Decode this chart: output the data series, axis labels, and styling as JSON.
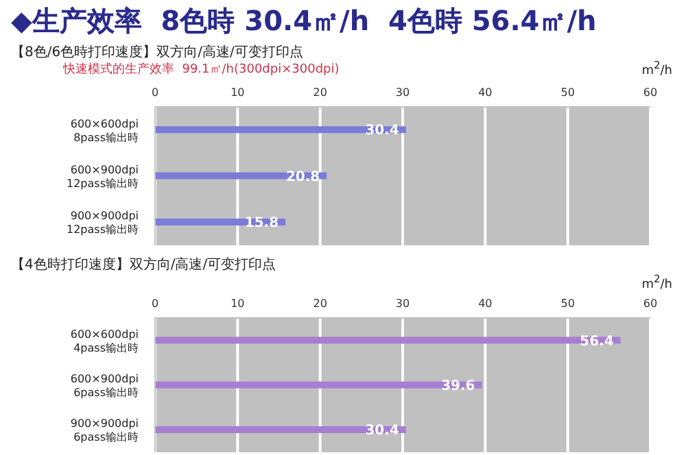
{
  "chart_data": [
    {
      "type": "bar",
      "orientation": "horizontal",
      "title": "◆生产效率  8色時 30.4㎡/h  4色時 56.4㎡/h",
      "subtitle": "【8色/6色時打印速度】双方向/高速/可变打印点",
      "annotations": [
        "快速模式的生产效率  99.1㎡/h(300dpi×300dpi)"
      ],
      "xlabel": "m$^{2}$/h",
      "categories": [
        "600×600dpi\n8pass输出時",
        "600×900dpi\n12pass输出時",
        "900×900dpi\n12pass输出時"
      ],
      "values": [
        30.4,
        20.8,
        15.8
      ],
      "color": "#7b7bd8",
      "xlim": [
        0,
        60
      ],
      "xticks": [
        0,
        10,
        20,
        30,
        40,
        50,
        60
      ],
      "grid": "x",
      "data_labels": true
    },
    {
      "type": "bar",
      "orientation": "horizontal",
      "title": "【4色時打印速度】双方向/高速/可变打印点",
      "xlabel": "m$^{2}$/h",
      "categories": [
        "600×600dpi\n4pass输出時",
        "600×900dpi\n6pass输出時",
        "900×900dpi\n6pass输出時"
      ],
      "values": [
        56.4,
        39.6,
        30.4
      ],
      "color": "#a77fd2",
      "xlim": [
        0,
        60
      ],
      "xticks": [
        0,
        10,
        20,
        30,
        40,
        50,
        60
      ],
      "grid": "x",
      "data_labels": true
    }
  ]
}
